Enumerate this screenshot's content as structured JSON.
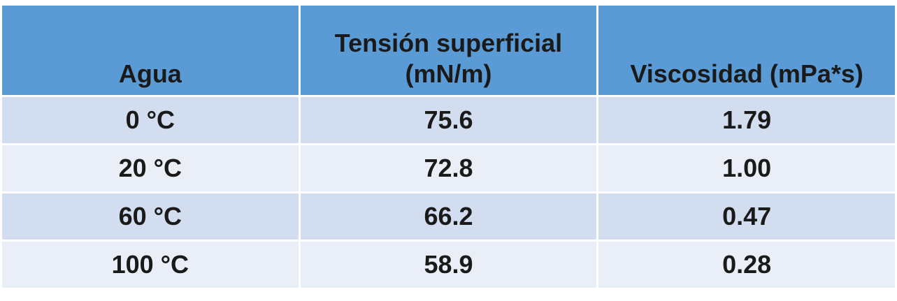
{
  "table": {
    "header": [
      "Agua",
      "Tensión superficial (mN/m)",
      "Viscosidad (mPa*s)"
    ],
    "rows": [
      [
        "0 °C",
        "75.6",
        "1.79"
      ],
      [
        "20 °C",
        "72.8",
        "1.00"
      ],
      [
        "60 °C",
        "66.2",
        "0.47"
      ],
      [
        "100 °C",
        "58.9",
        "0.28"
      ]
    ]
  }
}
